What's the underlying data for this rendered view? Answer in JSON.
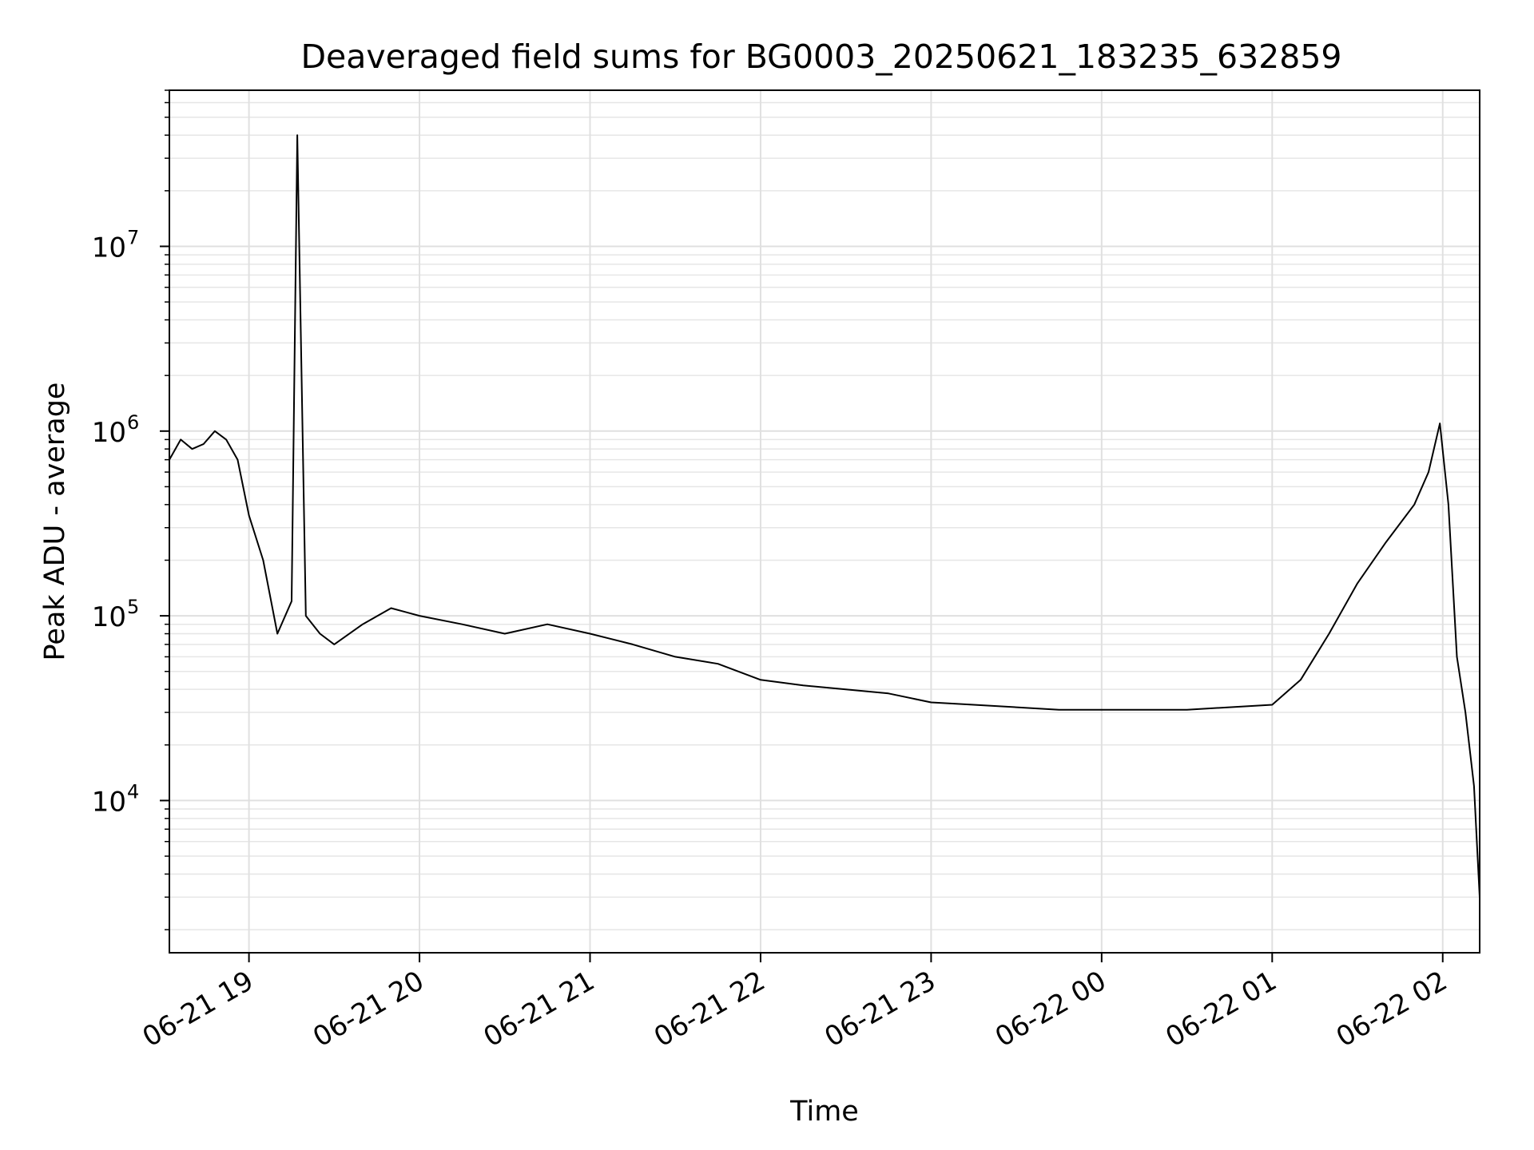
{
  "chart_data": {
    "type": "line",
    "title": "Deaveraged field sums for BG0003_20250621_183235_632859",
    "xlabel": "Time",
    "ylabel": "Peak ADU - average",
    "x_scale": "time",
    "y_scale": "log",
    "xlim": [
      "2025-06-21 18:32",
      "2025-06-22 02:13"
    ],
    "ylim": [
      1500,
      70000000
    ],
    "grid": true,
    "line_color": "#000000",
    "x_ticks": [
      {
        "value": "2025-06-21 19:00",
        "label": "06-21 19"
      },
      {
        "value": "2025-06-21 20:00",
        "label": "06-21 20"
      },
      {
        "value": "2025-06-21 21:00",
        "label": "06-21 21"
      },
      {
        "value": "2025-06-21 22:00",
        "label": "06-21 22"
      },
      {
        "value": "2025-06-21 23:00",
        "label": "06-21 23"
      },
      {
        "value": "2025-06-22 00:00",
        "label": "06-22 00"
      },
      {
        "value": "2025-06-22 01:00",
        "label": "06-22 01"
      },
      {
        "value": "2025-06-22 02:00",
        "label": "06-22 02"
      }
    ],
    "y_ticks": [
      {
        "value": 10000,
        "base": "10",
        "exponent": "4"
      },
      {
        "value": 100000,
        "base": "10",
        "exponent": "5"
      },
      {
        "value": 1000000,
        "base": "10",
        "exponent": "6"
      },
      {
        "value": 10000000,
        "base": "10",
        "exponent": "7"
      }
    ],
    "series": [
      {
        "x": [
          "2025-06-21 18:32",
          "2025-06-21 18:36",
          "2025-06-21 18:40",
          "2025-06-21 18:44",
          "2025-06-21 18:48",
          "2025-06-21 18:52",
          "2025-06-21 18:56",
          "2025-06-21 19:00",
          "2025-06-21 19:05",
          "2025-06-21 19:10",
          "2025-06-21 19:15",
          "2025-06-21 19:17",
          "2025-06-21 19:20",
          "2025-06-21 19:25",
          "2025-06-21 19:30",
          "2025-06-21 19:40",
          "2025-06-21 19:50",
          "2025-06-21 20:00",
          "2025-06-21 20:15",
          "2025-06-21 20:30",
          "2025-06-21 20:45",
          "2025-06-21 21:00",
          "2025-06-21 21:15",
          "2025-06-21 21:30",
          "2025-06-21 21:45",
          "2025-06-21 22:00",
          "2025-06-21 22:15",
          "2025-06-21 22:30",
          "2025-06-21 22:45",
          "2025-06-21 23:00",
          "2025-06-21 23:15",
          "2025-06-21 23:30",
          "2025-06-21 23:45",
          "2025-06-22 00:00",
          "2025-06-22 00:15",
          "2025-06-22 00:30",
          "2025-06-22 00:45",
          "2025-06-22 01:00",
          "2025-06-22 01:10",
          "2025-06-22 01:20",
          "2025-06-22 01:30",
          "2025-06-22 01:40",
          "2025-06-22 01:50",
          "2025-06-22 01:55",
          "2025-06-22 01:59",
          "2025-06-22 02:02",
          "2025-06-22 02:05",
          "2025-06-22 02:08",
          "2025-06-22 02:11",
          "2025-06-22 02:13"
        ],
        "y": [
          700000,
          900000,
          800000,
          850000,
          1000000,
          900000,
          700000,
          350000,
          200000,
          80000,
          120000,
          40000000,
          100000,
          80000,
          70000,
          90000,
          110000,
          100000,
          90000,
          80000,
          90000,
          80000,
          70000,
          60000,
          55000,
          45000,
          42000,
          40000,
          38000,
          34000,
          33000,
          32000,
          31000,
          31000,
          31000,
          31000,
          32000,
          33000,
          45000,
          80000,
          150000,
          250000,
          400000,
          600000,
          1100000,
          400000,
          60000,
          30000,
          12000,
          3000
        ]
      }
    ]
  }
}
